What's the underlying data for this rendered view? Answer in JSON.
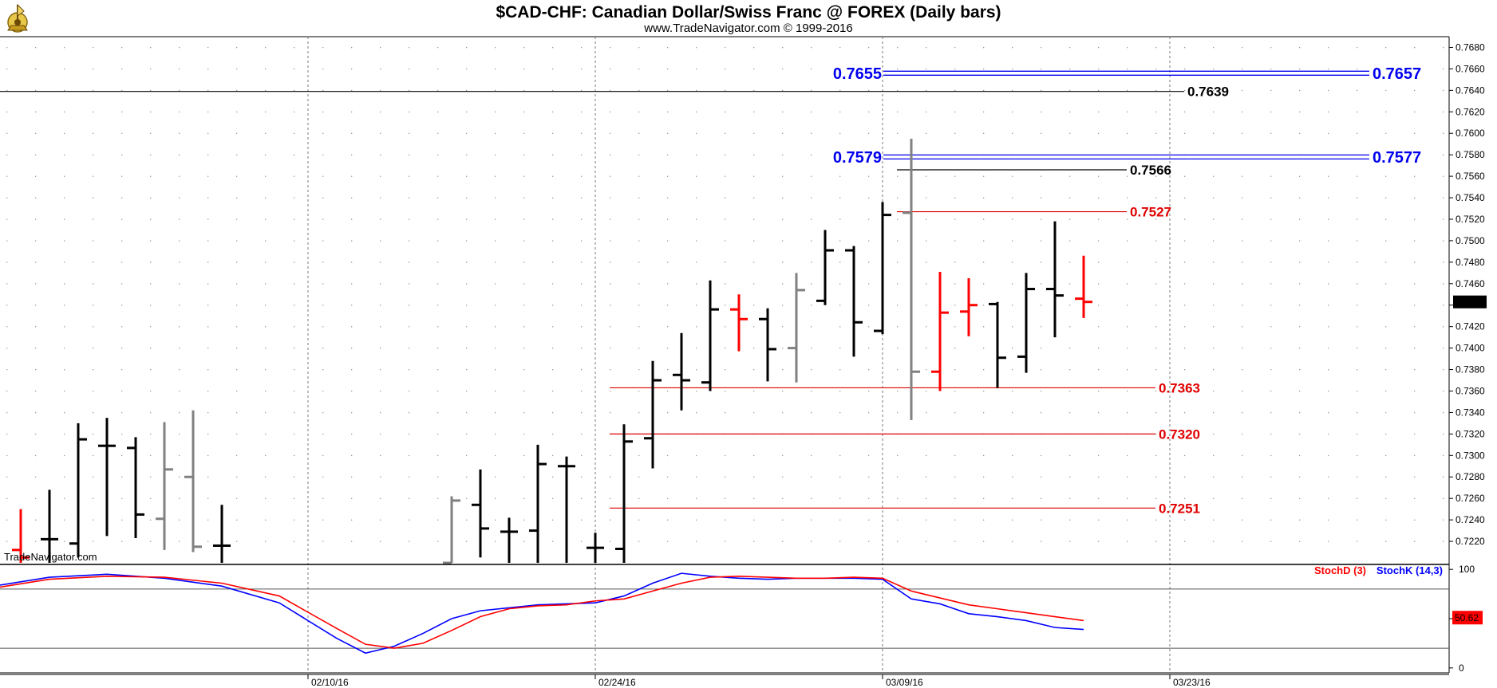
{
  "header": {
    "title": "$CAD-CHF:  Canadian Dollar/Swiss Franc @ FOREX  (Daily bars)",
    "subtitle": "www.TradeNavigator.com © 1999-2016"
  },
  "watermark": "TradeNavigator.com",
  "colors": {
    "black": "#000000",
    "gray": "#808080",
    "red": "#ff0000",
    "blue": "#0000ff",
    "level_red": "#e00000",
    "level_blue": "#0000ee"
  },
  "chart_data": [
    {
      "type": "ohlc",
      "title": "$CAD-CHF:  Canadian Dollar/Swiss Franc @ FOREX  (Daily bars)",
      "ylim": [
        0.72,
        0.769
      ],
      "y_ticks": [
        "0.7220",
        "0.7240",
        "0.7260",
        "0.7280",
        "0.7300",
        "0.7320",
        "0.7340",
        "0.7360",
        "0.7380",
        "0.7400",
        "0.7420",
        "0.7440",
        "0.7460",
        "0.7480",
        "0.7500",
        "0.7520",
        "0.7540",
        "0.7560",
        "0.7580",
        "0.7600",
        "0.7620",
        "0.7640",
        "0.7660",
        "0.7680"
      ],
      "x_labels": [
        "02/10/16",
        "02/24/16",
        "03/09/16",
        "03/23/16"
      ],
      "x_label_index": [
        10,
        20,
        30,
        40
      ],
      "last_price": "0.7443",
      "bars": [
        {
          "i": 0,
          "o": 0.7212,
          "h": 0.725,
          "l": 0.7196,
          "c": 0.7205,
          "color": "red"
        },
        {
          "i": 1,
          "o": 0.7222,
          "h": 0.7268,
          "l": 0.7196,
          "c": 0.7222,
          "color": "black"
        },
        {
          "i": 2,
          "o": 0.7218,
          "h": 0.733,
          "l": 0.7205,
          "c": 0.7315,
          "color": "black"
        },
        {
          "i": 3,
          "o": 0.7309,
          "h": 0.7335,
          "l": 0.7225,
          "c": 0.7309,
          "color": "black"
        },
        {
          "i": 4,
          "o": 0.7307,
          "h": 0.7317,
          "l": 0.7223,
          "c": 0.7245,
          "color": "black"
        },
        {
          "i": 5,
          "o": 0.7241,
          "h": 0.7331,
          "l": 0.7212,
          "c": 0.7287,
          "color": "gray"
        },
        {
          "i": 6,
          "o": 0.728,
          "h": 0.7342,
          "l": 0.721,
          "c": 0.7215,
          "color": "gray"
        },
        {
          "i": 7,
          "o": 0.7216,
          "h": 0.7254,
          "l": 0.7196,
          "c": 0.7216,
          "color": "black"
        },
        {
          "i": 15,
          "o": 0.72,
          "h": 0.7262,
          "l": 0.7196,
          "c": 0.7258,
          "color": "gray"
        },
        {
          "i": 16,
          "o": 0.7254,
          "h": 0.7287,
          "l": 0.7205,
          "c": 0.7232,
          "color": "black"
        },
        {
          "i": 17,
          "o": 0.7229,
          "h": 0.7242,
          "l": 0.7196,
          "c": 0.7229,
          "color": "black"
        },
        {
          "i": 18,
          "o": 0.723,
          "h": 0.731,
          "l": 0.7196,
          "c": 0.7292,
          "color": "black"
        },
        {
          "i": 19,
          "o": 0.729,
          "h": 0.7299,
          "l": 0.7196,
          "c": 0.729,
          "color": "black"
        },
        {
          "i": 20,
          "o": 0.7214,
          "h": 0.7228,
          "l": 0.7196,
          "c": 0.7214,
          "color": "black"
        },
        {
          "i": 21,
          "o": 0.7213,
          "h": 0.7329,
          "l": 0.7196,
          "c": 0.7313,
          "color": "black"
        },
        {
          "i": 22,
          "o": 0.7316,
          "h": 0.7388,
          "l": 0.7288,
          "c": 0.737,
          "color": "black"
        },
        {
          "i": 23,
          "o": 0.7375,
          "h": 0.7414,
          "l": 0.7342,
          "c": 0.737,
          "color": "black"
        },
        {
          "i": 24,
          "o": 0.7368,
          "h": 0.7463,
          "l": 0.736,
          "c": 0.7436,
          "color": "black"
        },
        {
          "i": 25,
          "o": 0.7436,
          "h": 0.745,
          "l": 0.7397,
          "c": 0.7427,
          "color": "red"
        },
        {
          "i": 26,
          "o": 0.7427,
          "h": 0.7437,
          "l": 0.7369,
          "c": 0.7399,
          "color": "black"
        },
        {
          "i": 27,
          "o": 0.74,
          "h": 0.747,
          "l": 0.7368,
          "c": 0.7454,
          "color": "gray"
        },
        {
          "i": 28,
          "o": 0.7444,
          "h": 0.751,
          "l": 0.744,
          "c": 0.7491,
          "color": "black"
        },
        {
          "i": 29,
          "o": 0.7491,
          "h": 0.7495,
          "l": 0.7392,
          "c": 0.7424,
          "color": "black"
        },
        {
          "i": 30,
          "o": 0.7416,
          "h": 0.7536,
          "l": 0.7413,
          "c": 0.7524,
          "color": "black"
        },
        {
          "i": 31,
          "o": 0.7526,
          "h": 0.7595,
          "l": 0.7333,
          "c": 0.7378,
          "color": "gray"
        },
        {
          "i": 32,
          "o": 0.7378,
          "h": 0.7471,
          "l": 0.736,
          "c": 0.7433,
          "color": "red"
        },
        {
          "i": 33,
          "o": 0.7434,
          "h": 0.7465,
          "l": 0.7411,
          "c": 0.744,
          "color": "red"
        },
        {
          "i": 34,
          "o": 0.7441,
          "h": 0.7443,
          "l": 0.7363,
          "c": 0.7391,
          "color": "black"
        },
        {
          "i": 35,
          "o": 0.7392,
          "h": 0.747,
          "l": 0.7377,
          "c": 0.7455,
          "color": "black"
        },
        {
          "i": 36,
          "o": 0.7455,
          "h": 0.7518,
          "l": 0.741,
          "c": 0.7449,
          "color": "black"
        },
        {
          "i": 37,
          "o": 0.7446,
          "h": 0.7486,
          "l": 0.7428,
          "c": 0.7443,
          "color": "red"
        }
      ],
      "levels": [
        {
          "value": 0.7639,
          "label": "0.7639",
          "color": "black",
          "from": -1,
          "to": 40.5,
          "label_side": "right",
          "double": false
        },
        {
          "value": 0.7566,
          "label": "0.7566",
          "color": "black",
          "from": 30.5,
          "to": 38.5,
          "label_side": "right",
          "double": false
        },
        {
          "value": 0.7527,
          "label": "0.7527",
          "color": "level_red",
          "from": 30.5,
          "to": 38.5,
          "label_side": "right",
          "double": false
        },
        {
          "value": 0.7363,
          "label": "0.7363",
          "color": "level_red",
          "from": 20.5,
          "to": 39.5,
          "label_side": "right",
          "double": false
        },
        {
          "value": 0.732,
          "label": "0.7320",
          "color": "level_red",
          "from": 20.5,
          "to": 39.5,
          "label_side": "right",
          "double": false
        },
        {
          "value": 0.7251,
          "label": "0.7251",
          "color": "level_red",
          "from": 20.5,
          "to": 39.5,
          "label_side": "right",
          "double": false
        }
      ],
      "blue_levels": [
        {
          "value": 0.7656,
          "left_label": "0.7655",
          "right_label": "0.7657"
        },
        {
          "value": 0.7578,
          "left_label": "0.7579",
          "right_label": "0.7577"
        }
      ]
    },
    {
      "type": "line",
      "title": "",
      "ylim": [
        -5,
        105
      ],
      "y_ticks": [
        "100",
        "50",
        "0"
      ],
      "guide_lines": [
        80,
        20
      ],
      "last_value": "50.62",
      "series": [
        {
          "name": "StochD (3)",
          "color": "red",
          "x": [
            -1,
            1,
            3,
            5,
            7,
            9,
            11,
            12,
            13,
            14,
            15,
            16,
            17,
            18,
            19,
            20,
            21,
            22,
            23,
            24,
            25,
            26,
            27,
            28,
            29,
            30,
            31,
            32,
            33,
            34,
            35,
            36,
            37
          ],
          "values": [
            82,
            90,
            93,
            92,
            86,
            73,
            40,
            24,
            20,
            25,
            38,
            52,
            60,
            63,
            64,
            68,
            70,
            78,
            86,
            92,
            93,
            92,
            91,
            91,
            92,
            91,
            78,
            71,
            64,
            60,
            56,
            52,
            48
          ]
        },
        {
          "name": "StochK (14,3)",
          "color": "blue",
          "x": [
            -1,
            1,
            3,
            5,
            7,
            9,
            11,
            12,
            13,
            14,
            15,
            16,
            17,
            18,
            19,
            20,
            21,
            22,
            23,
            24,
            25,
            26,
            27,
            28,
            29,
            30,
            31,
            32,
            33,
            34,
            35,
            36,
            37
          ],
          "values": [
            84,
            92,
            95,
            91,
            83,
            66,
            30,
            15,
            22,
            35,
            50,
            58,
            61,
            64,
            65,
            66,
            73,
            86,
            96,
            93,
            91,
            90,
            91,
            91,
            91,
            90,
            70,
            65,
            55,
            52,
            48,
            41,
            39
          ]
        }
      ]
    }
  ]
}
